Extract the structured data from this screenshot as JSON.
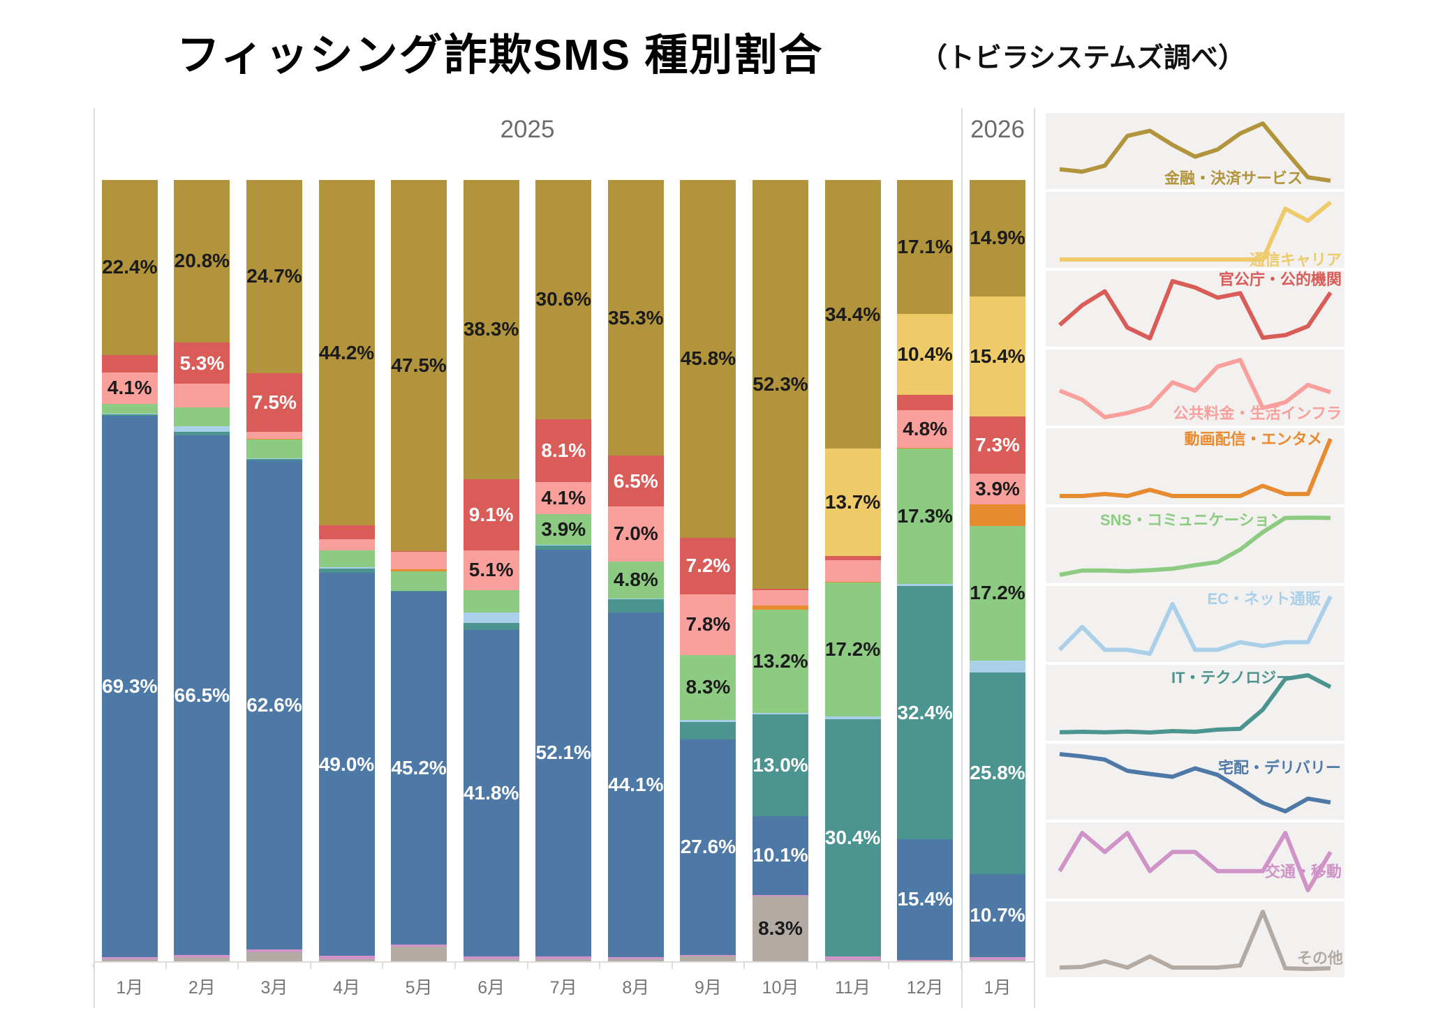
{
  "title": "フィッシング詐欺SMS 種別割合",
  "subtitle": "（トビラシステムズ調べ）",
  "chart_data": {
    "type": "bar",
    "stacked": true,
    "unit": "%",
    "grid": false,
    "legend_position": "right-sparkline-panels",
    "value_label_threshold": 3.9,
    "categories": [
      "1月",
      "2月",
      "3月",
      "4月",
      "5月",
      "6月",
      "7月",
      "8月",
      "9月",
      "10月",
      "11月",
      "12月",
      "1月"
    ],
    "x_groups": [
      {
        "label": "2025",
        "months": [
          "1月",
          "2月",
          "3月",
          "4月",
          "5月",
          "6月",
          "7月",
          "8月",
          "9月",
          "10月",
          "11月",
          "12月"
        ]
      },
      {
        "label": "2026",
        "months": [
          "1月"
        ]
      }
    ],
    "axis_color": "#dcdcda",
    "label_text_color": "#757575",
    "series": [
      {
        "name": "金融・決済サービス",
        "color": "#b2943c",
        "text_on_segment": "#1b1b1b",
        "values": [
          22.4,
          20.8,
          24.7,
          44.2,
          47.5,
          38.3,
          30.6,
          35.3,
          45.8,
          52.3,
          34.4,
          17.1,
          14.9
        ]
      },
      {
        "name": "通信キャリア",
        "color": "#efca69",
        "text_on_segment": "#1b1b1b",
        "values": [
          0,
          0,
          0,
          0,
          0,
          0,
          0,
          0,
          0,
          0,
          13.7,
          10.4,
          15.4
        ]
      },
      {
        "name": "官公庁・公的機関",
        "color": "#d95c58",
        "text_on_segment": "#ffffff",
        "values": [
          2.2,
          5.3,
          7.5,
          1.8,
          0.1,
          9.1,
          8.1,
          6.5,
          7.2,
          0.2,
          0.6,
          2.0,
          7.3
        ]
      },
      {
        "name": "公共料金・生活インフラ",
        "color": "#f9a09d",
        "text_on_segment": "#1b1b1b",
        "values": [
          4.1,
          3.0,
          0.9,
          1.4,
          2.2,
          5.1,
          4.1,
          7.0,
          7.8,
          2.0,
          2.7,
          4.8,
          3.9
        ]
      },
      {
        "name": "動画配信・エンタメ",
        "color": "#e78b30",
        "text_on_segment": "#1b1b1b",
        "values": [
          0,
          0,
          0.1,
          0,
          0.3,
          0,
          0,
          0,
          0,
          0.5,
          0.1,
          0.1,
          2.8
        ]
      },
      {
        "name": "SNS・コミュニケーション",
        "color": "#8ecb82",
        "text_on_segment": "#1b1b1b",
        "values": [
          1.2,
          2.4,
          2.4,
          2.2,
          2.5,
          2.9,
          3.9,
          4.8,
          8.3,
          13.2,
          17.2,
          17.3,
          17.2
        ]
      },
      {
        "name": "EC・ネット通販",
        "color": "#aacfe9",
        "text_on_segment": "#1b1b1b",
        "values": [
          0.1,
          0.7,
          0.1,
          0.1,
          0,
          1.3,
          0.1,
          0.1,
          0.3,
          0.2,
          0.3,
          0.3,
          1.5
        ]
      },
      {
        "name": "IT・テクノロジー",
        "color": "#4b948f",
        "text_on_segment": "#ffffff",
        "values": [
          0.2,
          0.5,
          0.2,
          0.6,
          0.1,
          0.9,
          0.5,
          1.7,
          2.2,
          13.0,
          30.4,
          32.4,
          25.8
        ]
      },
      {
        "name": "宅配・デリバリー",
        "color": "#4e79a7",
        "text_on_segment": "#ffffff",
        "values": [
          69.3,
          66.5,
          62.6,
          49.0,
          45.2,
          41.8,
          52.1,
          44.1,
          27.6,
          10.1,
          0,
          15.4,
          10.7
        ]
      },
      {
        "name": "交通・移動",
        "color": "#cf93c8",
        "text_on_segment": "#1b1b1b",
        "values": [
          0.2,
          0.4,
          0.3,
          0.4,
          0.2,
          0.3,
          0.3,
          0.2,
          0.2,
          0.2,
          0.4,
          0.1,
          0.3
        ]
      },
      {
        "name": "その他",
        "color": "#b3aaa4",
        "text_on_segment": "#1b1b1b",
        "values": [
          0.3,
          0.4,
          1.2,
          0.3,
          1.9,
          0.3,
          0.3,
          0.3,
          0.6,
          8.3,
          0.2,
          0.1,
          0.2
        ]
      }
    ]
  }
}
